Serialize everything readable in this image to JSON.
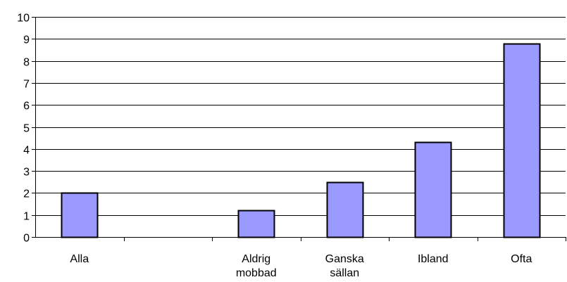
{
  "chart_data": {
    "type": "bar",
    "title": "",
    "xlabel": "",
    "ylabel": "",
    "categories": [
      [
        "Alla"
      ],
      [
        ""
      ],
      [
        "Aldrig",
        "mobbad"
      ],
      [
        "Ganska",
        "sällan"
      ],
      [
        "Ibland"
      ],
      [
        "Ofta"
      ]
    ],
    "values": [
      2.0,
      null,
      1.2,
      2.5,
      4.3,
      8.8
    ],
    "ylim": [
      0,
      10
    ],
    "yticks": [
      "0",
      "1",
      "2",
      "3",
      "4",
      "5",
      "6",
      "7",
      "8",
      "9",
      "10"
    ],
    "grid": true,
    "legend": "none",
    "bar_color": "#9999ff",
    "bar_edge_color": "#000000"
  }
}
